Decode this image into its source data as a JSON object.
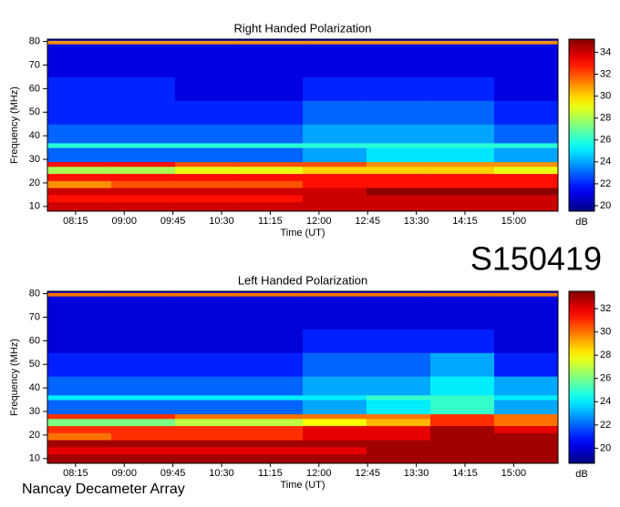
{
  "chart_data": [
    {
      "type": "heatmap",
      "title": "Right Handed Polarization",
      "xlabel": "Time (UT)",
      "ylabel": "Frequency (MHz)",
      "colorbar_label": "dB",
      "colormap": "jet",
      "x_edges": [
        469,
        528,
        587,
        646,
        705,
        764,
        823,
        882,
        941
      ],
      "y_edges": [
        8,
        12,
        15,
        18,
        21,
        24,
        27,
        29,
        35,
        37,
        45,
        55,
        65,
        79,
        80.5,
        81
      ],
      "values": [
        [
          34,
          34,
          34,
          34,
          34,
          34,
          34,
          34
        ],
        [
          33,
          33,
          33,
          33,
          34,
          34,
          34,
          34
        ],
        [
          34,
          34,
          34,
          34,
          34,
          35,
          35,
          35
        ],
        [
          31,
          32,
          32,
          32,
          33,
          33,
          33,
          33
        ],
        [
          33,
          33,
          33,
          33,
          33,
          33,
          33,
          33
        ],
        [
          28,
          28,
          29,
          29,
          30,
          30,
          30,
          29
        ],
        [
          33,
          33,
          32,
          32,
          32,
          31,
          31,
          31
        ],
        [
          23,
          23,
          23,
          23,
          24,
          25,
          25,
          24
        ],
        [
          26,
          26,
          26,
          26,
          26,
          26,
          26,
          26
        ],
        [
          23,
          23,
          23,
          23,
          24,
          24,
          24,
          23
        ],
        [
          22,
          22,
          22,
          22,
          23,
          23,
          23,
          22
        ],
        [
          22,
          22,
          21,
          21,
          22,
          22,
          22,
          21
        ],
        [
          21,
          21,
          21,
          21,
          21,
          21,
          21,
          21
        ],
        [
          31,
          31,
          31,
          31,
          31,
          31,
          31,
          31
        ],
        [
          21,
          21,
          21,
          21,
          21,
          21,
          21,
          21
        ]
      ],
      "xlim": [
        469,
        941
      ],
      "ylim": [
        8,
        81
      ],
      "xticks": [
        {
          "value": 495,
          "label": "08:15"
        },
        {
          "value": 540,
          "label": "09:00"
        },
        {
          "value": 585,
          "label": "09:45"
        },
        {
          "value": 630,
          "label": "10:30"
        },
        {
          "value": 675,
          "label": "11:15"
        },
        {
          "value": 720,
          "label": "12:00"
        },
        {
          "value": 765,
          "label": "12:45"
        },
        {
          "value": 810,
          "label": "13:30"
        },
        {
          "value": 855,
          "label": "14:15"
        },
        {
          "value": 900,
          "label": "15:00"
        }
      ],
      "yticks": [
        10,
        20,
        30,
        40,
        50,
        60,
        70,
        80
      ],
      "clim": [
        19.5,
        35.2
      ],
      "cticks": [
        20,
        22,
        24,
        26,
        28,
        30,
        32,
        34
      ]
    },
    {
      "type": "heatmap",
      "title": "Left Handed Polarization",
      "xlabel": "Time (UT)",
      "ylabel": "Frequency (MHz)",
      "colorbar_label": "dB",
      "colormap": "jet",
      "x_edges": [
        469,
        528,
        587,
        646,
        705,
        764,
        823,
        882,
        941
      ],
      "y_edges": [
        8,
        12,
        15,
        18,
        21,
        24,
        27,
        29,
        35,
        37,
        45,
        55,
        65,
        79,
        80.5,
        81
      ],
      "values": [
        [
          33,
          33,
          33,
          33,
          33,
          33,
          33,
          33
        ],
        [
          32,
          32,
          32,
          32,
          32,
          33,
          33,
          33
        ],
        [
          33,
          33,
          33,
          33,
          33,
          33,
          33,
          33
        ],
        [
          30,
          31,
          31,
          31,
          32,
          32,
          33,
          33
        ],
        [
          31,
          31,
          31,
          31,
          32,
          32,
          33,
          32
        ],
        [
          26,
          26,
          27,
          27,
          28,
          29,
          31,
          30
        ],
        [
          31,
          31,
          30,
          30,
          30,
          30,
          31,
          30
        ],
        [
          22,
          22,
          22,
          22,
          23,
          24,
          25,
          23
        ],
        [
          24,
          24,
          24,
          24,
          24,
          25,
          25,
          24
        ],
        [
          22,
          22,
          22,
          22,
          23,
          23,
          24,
          23
        ],
        [
          21,
          21,
          21,
          21,
          22,
          22,
          23,
          21
        ],
        [
          20,
          20,
          20,
          20,
          21,
          21,
          21,
          20
        ],
        [
          20,
          20,
          20,
          20,
          20,
          20,
          20,
          20
        ],
        [
          30,
          30,
          30,
          30,
          30,
          30,
          30,
          30
        ],
        [
          20,
          20,
          20,
          20,
          20,
          20,
          20,
          20
        ]
      ],
      "xlim": [
        469,
        941
      ],
      "ylim": [
        8,
        81
      ],
      "xticks": [
        {
          "value": 495,
          "label": "08:15"
        },
        {
          "value": 540,
          "label": "09:00"
        },
        {
          "value": 585,
          "label": "09:45"
        },
        {
          "value": 630,
          "label": "10:30"
        },
        {
          "value": 675,
          "label": "11:15"
        },
        {
          "value": 720,
          "label": "12:00"
        },
        {
          "value": 765,
          "label": "12:45"
        },
        {
          "value": 810,
          "label": "13:30"
        },
        {
          "value": 855,
          "label": "14:15"
        },
        {
          "value": 900,
          "label": "15:00"
        }
      ],
      "yticks": [
        10,
        20,
        30,
        40,
        50,
        60,
        70,
        80
      ],
      "clim": [
        18.7,
        33.5
      ],
      "cticks": [
        20,
        22,
        24,
        26,
        28,
        30,
        32
      ]
    }
  ],
  "annotations": {
    "code": "S150419",
    "source": "Nancay Decameter Array"
  }
}
